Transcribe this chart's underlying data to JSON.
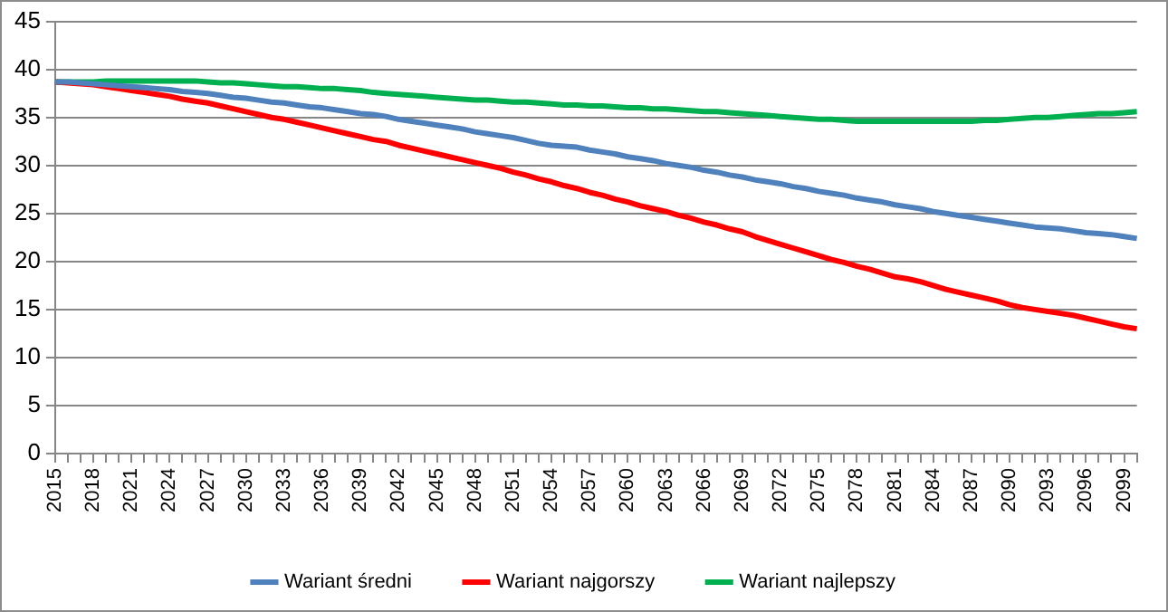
{
  "chart_data": {
    "type": "line",
    "categories": [
      "2015",
      null,
      null,
      "2018",
      null,
      null,
      "2021",
      null,
      null,
      "2024",
      null,
      null,
      "2027",
      null,
      null,
      "2030",
      null,
      null,
      "2033",
      null,
      null,
      "2036",
      null,
      null,
      "2039",
      null,
      null,
      "2042",
      null,
      null,
      "2045",
      null,
      null,
      "2048",
      null,
      null,
      "2051",
      null,
      null,
      "2054",
      null,
      null,
      "2057",
      null,
      null,
      "2060",
      null,
      null,
      "2063",
      null,
      null,
      "2066",
      null,
      null,
      "2069",
      null,
      null,
      "2072",
      null,
      null,
      "2075",
      null,
      null,
      "2078",
      null,
      null,
      "2081",
      null,
      null,
      "2084",
      null,
      null,
      "2087",
      null,
      null,
      "2090",
      null,
      null,
      "2093",
      null,
      null,
      "2096",
      null,
      null,
      "2099",
      null
    ],
    "series": [
      {
        "name": "Wariant średni",
        "color": "#4f81bd",
        "values": [
          38.7,
          38.7,
          38.6,
          38.5,
          38.4,
          38.3,
          38.2,
          38.1,
          38.0,
          37.9,
          37.7,
          37.6,
          37.5,
          37.3,
          37.1,
          37.0,
          36.8,
          36.6,
          36.5,
          36.3,
          36.1,
          36.0,
          35.8,
          35.6,
          35.4,
          35.3,
          35.1,
          34.8,
          34.6,
          34.4,
          34.2,
          34.0,
          33.8,
          33.5,
          33.3,
          33.1,
          32.9,
          32.6,
          32.3,
          32.1,
          32.0,
          31.9,
          31.6,
          31.4,
          31.2,
          30.9,
          30.7,
          30.5,
          30.2,
          30.0,
          29.8,
          29.5,
          29.3,
          29.0,
          28.8,
          28.5,
          28.3,
          28.1,
          27.8,
          27.6,
          27.3,
          27.1,
          26.9,
          26.6,
          26.4,
          26.2,
          25.9,
          25.7,
          25.5,
          25.2,
          25.0,
          24.8,
          24.6,
          24.4,
          24.2,
          24.0,
          23.8,
          23.6,
          23.5,
          23.4,
          23.2,
          23.0,
          22.9,
          22.8,
          22.6,
          22.4
        ]
      },
      {
        "name": "Wariant najgorszy",
        "color": "#ff0000",
        "values": [
          38.7,
          38.6,
          38.5,
          38.4,
          38.2,
          38.0,
          37.8,
          37.6,
          37.4,
          37.2,
          36.9,
          36.7,
          36.5,
          36.2,
          35.9,
          35.6,
          35.3,
          35.0,
          34.8,
          34.5,
          34.2,
          33.9,
          33.6,
          33.3,
          33.0,
          32.7,
          32.5,
          32.1,
          31.8,
          31.5,
          31.2,
          30.9,
          30.6,
          30.3,
          30.0,
          29.7,
          29.3,
          29.0,
          28.6,
          28.3,
          27.9,
          27.6,
          27.2,
          26.9,
          26.5,
          26.2,
          25.8,
          25.5,
          25.2,
          24.8,
          24.5,
          24.1,
          23.8,
          23.4,
          23.1,
          22.6,
          22.2,
          21.8,
          21.4,
          21.0,
          20.6,
          20.2,
          19.9,
          19.5,
          19.2,
          18.8,
          18.4,
          18.2,
          17.9,
          17.5,
          17.1,
          16.8,
          16.5,
          16.2,
          15.9,
          15.5,
          15.2,
          15.0,
          14.8,
          14.6,
          14.4,
          14.1,
          13.8,
          13.5,
          13.2,
          13.0
        ]
      },
      {
        "name": "Wariant najlepszy",
        "color": "#00b050",
        "values": [
          38.7,
          38.7,
          38.7,
          38.7,
          38.8,
          38.8,
          38.8,
          38.8,
          38.8,
          38.8,
          38.8,
          38.8,
          38.7,
          38.6,
          38.6,
          38.5,
          38.4,
          38.3,
          38.2,
          38.2,
          38.1,
          38.0,
          38.0,
          37.9,
          37.8,
          37.6,
          37.5,
          37.4,
          37.3,
          37.2,
          37.1,
          37.0,
          36.9,
          36.8,
          36.8,
          36.7,
          36.6,
          36.6,
          36.5,
          36.4,
          36.3,
          36.3,
          36.2,
          36.2,
          36.1,
          36.0,
          36.0,
          35.9,
          35.9,
          35.8,
          35.7,
          35.6,
          35.6,
          35.5,
          35.4,
          35.3,
          35.2,
          35.1,
          35.0,
          34.9,
          34.8,
          34.8,
          34.7,
          34.6,
          34.6,
          34.6,
          34.6,
          34.6,
          34.6,
          34.6,
          34.6,
          34.6,
          34.6,
          34.7,
          34.7,
          34.8,
          34.9,
          35.0,
          35.0,
          35.1,
          35.2,
          35.3,
          35.4,
          35.4,
          35.5,
          35.6
        ]
      }
    ],
    "ylim": [
      0,
      45
    ],
    "yticks": [
      0,
      5,
      10,
      15,
      20,
      25,
      30,
      35,
      40,
      45
    ],
    "grid": "y",
    "legend": "bottom",
    "marker": "none",
    "line_style": "solid"
  }
}
